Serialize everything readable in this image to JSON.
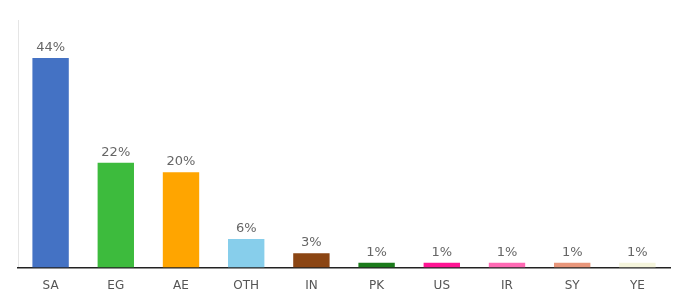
{
  "chart_data": {
    "type": "bar",
    "categories": [
      "SA",
      "EG",
      "AE",
      "OTH",
      "IN",
      "PK",
      "US",
      "IR",
      "SY",
      "YE"
    ],
    "values": [
      44,
      22,
      20,
      6,
      3,
      1,
      1,
      1,
      1,
      1
    ],
    "value_labels": [
      "44%",
      "22%",
      "20%",
      "6%",
      "3%",
      "1%",
      "1%",
      "1%",
      "1%",
      "1%"
    ],
    "colors": [
      "#4472C4",
      "#3DBB3D",
      "#FFA500",
      "#87CEEB",
      "#8B4513",
      "#1A7A1A",
      "#FF1493",
      "#FF69B4",
      "#E8967A",
      "#F5F5DC"
    ],
    "ylim": [
      0,
      52
    ],
    "data_labels": true,
    "tick_labels": "x",
    "grid": false
  }
}
